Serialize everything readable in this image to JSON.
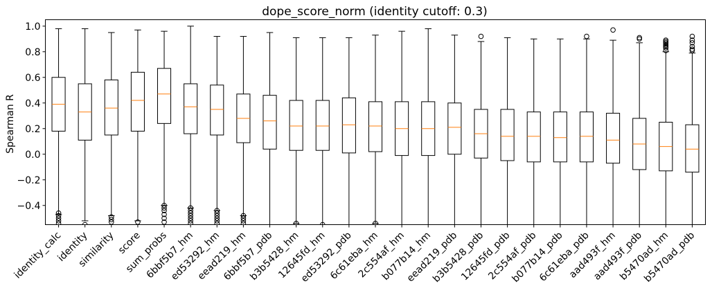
{
  "chart_data": {
    "type": "boxplot",
    "title": "dope_score_norm (identity cutoff: 0.3)",
    "xlabel": "",
    "ylabel": "Spearman R",
    "ylim": [
      -0.55,
      1.05
    ],
    "yticks": [
      -0.4,
      -0.2,
      0.0,
      0.2,
      0.4,
      0.6,
      0.8,
      1.0
    ],
    "ytick_labels": [
      "−0.4",
      "−0.2",
      "0.0",
      "0.2",
      "0.4",
      "0.6",
      "0.8",
      "1.0"
    ],
    "grid": false,
    "colors": {
      "box": "#000000",
      "median": "#ff7f0e",
      "flier": "#000000"
    },
    "categories": [
      "identity_calc",
      "identity",
      "similarity",
      "score",
      "sum_probs",
      "6bbf5b7_hm",
      "ed53292_hm",
      "eead219_hm",
      "6bbf5b7_pdb",
      "b3b5428_hm",
      "12645fd_hm",
      "ed53292_pdb",
      "6c61eba_hm",
      "2c554af_hm",
      "b077b14_hm",
      "eead219_pdb",
      "b3b5428_pdb",
      "12645fd_pdb",
      "2c554af_pdb",
      "b077b14_pdb",
      "6c61eba_pdb",
      "aad493f_hm",
      "aad493f_pdb",
      "b5470ad_hm",
      "b5470ad_pdb"
    ],
    "boxes": [
      {
        "whislo": -0.47,
        "q1": 0.18,
        "med": 0.39,
        "q3": 0.6,
        "whishi": 0.98,
        "fliers": [
          -0.46,
          -0.48,
          -0.5,
          -0.52,
          -0.54
        ]
      },
      {
        "whislo": -0.52,
        "q1": 0.11,
        "med": 0.33,
        "q3": 0.55,
        "whishi": 0.98,
        "fliers": [
          -0.55
        ]
      },
      {
        "whislo": -0.48,
        "q1": 0.15,
        "med": 0.36,
        "q3": 0.58,
        "whishi": 0.95,
        "fliers": [
          -0.49,
          -0.51,
          -0.53
        ]
      },
      {
        "whislo": -0.52,
        "q1": 0.18,
        "med": 0.42,
        "q3": 0.64,
        "whishi": 0.97,
        "fliers": [
          -0.53
        ]
      },
      {
        "whislo": -0.4,
        "q1": 0.24,
        "med": 0.47,
        "q3": 0.67,
        "whishi": 0.96,
        "fliers": [
          -0.4,
          -0.42,
          -0.44,
          -0.47,
          -0.5,
          -0.53
        ]
      },
      {
        "whislo": -0.42,
        "q1": 0.16,
        "med": 0.37,
        "q3": 0.55,
        "whishi": 1.0,
        "fliers": [
          -0.42,
          -0.44,
          -0.46,
          -0.48,
          -0.5,
          -0.52,
          -0.54
        ]
      },
      {
        "whislo": -0.44,
        "q1": 0.15,
        "med": 0.35,
        "q3": 0.54,
        "whishi": 0.92,
        "fliers": [
          -0.44,
          -0.46,
          -0.48,
          -0.5,
          -0.52,
          -0.54
        ]
      },
      {
        "whislo": -0.48,
        "q1": 0.09,
        "med": 0.28,
        "q3": 0.47,
        "whishi": 0.92,
        "fliers": [
          -0.48,
          -0.5,
          -0.52,
          -0.54
        ]
      },
      {
        "whislo": -0.56,
        "q1": 0.04,
        "med": 0.26,
        "q3": 0.46,
        "whishi": 0.95,
        "fliers": []
      },
      {
        "whislo": -0.54,
        "q1": 0.03,
        "med": 0.22,
        "q3": 0.42,
        "whishi": 0.91,
        "fliers": [
          -0.54
        ]
      },
      {
        "whislo": -0.55,
        "q1": 0.03,
        "med": 0.22,
        "q3": 0.42,
        "whishi": 0.91,
        "fliers": [
          -0.55
        ]
      },
      {
        "whislo": -0.56,
        "q1": 0.01,
        "med": 0.23,
        "q3": 0.44,
        "whishi": 0.91,
        "fliers": []
      },
      {
        "whislo": -0.54,
        "q1": 0.02,
        "med": 0.22,
        "q3": 0.41,
        "whishi": 0.93,
        "fliers": [
          -0.54
        ]
      },
      {
        "whislo": -0.56,
        "q1": -0.01,
        "med": 0.2,
        "q3": 0.41,
        "whishi": 0.96,
        "fliers": []
      },
      {
        "whislo": -0.56,
        "q1": -0.01,
        "med": 0.2,
        "q3": 0.41,
        "whishi": 0.98,
        "fliers": []
      },
      {
        "whislo": -0.56,
        "q1": 0.0,
        "med": 0.21,
        "q3": 0.4,
        "whishi": 0.93,
        "fliers": []
      },
      {
        "whislo": -0.56,
        "q1": -0.03,
        "med": 0.16,
        "q3": 0.35,
        "whishi": 0.88,
        "fliers": [
          0.92
        ]
      },
      {
        "whislo": -0.56,
        "q1": -0.05,
        "med": 0.14,
        "q3": 0.35,
        "whishi": 0.91,
        "fliers": []
      },
      {
        "whislo": -0.56,
        "q1": -0.06,
        "med": 0.14,
        "q3": 0.33,
        "whishi": 0.9,
        "fliers": []
      },
      {
        "whislo": -0.56,
        "q1": -0.06,
        "med": 0.13,
        "q3": 0.33,
        "whishi": 0.9,
        "fliers": []
      },
      {
        "whislo": -0.56,
        "q1": -0.06,
        "med": 0.14,
        "q3": 0.33,
        "whishi": 0.9,
        "fliers": [
          0.92
        ]
      },
      {
        "whislo": -0.56,
        "q1": -0.07,
        "med": 0.11,
        "q3": 0.32,
        "whishi": 0.89,
        "fliers": [
          0.97
        ]
      },
      {
        "whislo": -0.56,
        "q1": -0.12,
        "med": 0.08,
        "q3": 0.28,
        "whishi": 0.87,
        "fliers": [
          0.9,
          0.91
        ]
      },
      {
        "whislo": -0.56,
        "q1": -0.13,
        "med": 0.06,
        "q3": 0.25,
        "whishi": 0.8,
        "fliers": [
          0.81,
          0.83,
          0.84,
          0.85,
          0.86,
          0.87,
          0.88,
          0.89
        ]
      },
      {
        "whislo": -0.56,
        "q1": -0.14,
        "med": 0.04,
        "q3": 0.23,
        "whishi": 0.79,
        "fliers": [
          0.81,
          0.82,
          0.84,
          0.87,
          0.89,
          0.92
        ]
      }
    ]
  }
}
